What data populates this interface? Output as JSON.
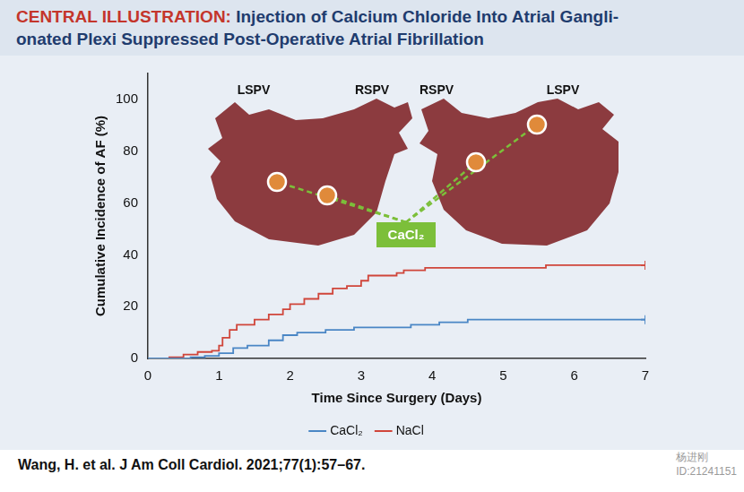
{
  "header": {
    "lead": "CENTRAL ILLUSTRATION:",
    "lines": [
      "Injection of Calcium Chloride Into Atrial Gangli-",
      "onated Plexi Suppressed Post-Operative Atrial Fibrillation"
    ]
  },
  "figure": {
    "left_heart_labels": [
      "LSPV",
      "RSPV"
    ],
    "right_heart_labels": [
      "RSPV",
      "LSPV"
    ],
    "injection_label": "CaCl₂"
  },
  "chart_data": {
    "type": "line",
    "x_label": "Time Since Surgery (Days)",
    "y_label": "Cumulative Incidence of AF (%)",
    "xlim": [
      0,
      7
    ],
    "xticks": [
      0,
      1,
      2,
      3,
      4,
      5,
      6,
      7
    ],
    "ylim": [
      0,
      110
    ],
    "yticks": [
      0,
      20,
      40,
      60,
      80,
      100
    ],
    "grid": false,
    "legend": "bottom",
    "series": [
      {
        "name": "CaCl₂",
        "color": "#4a86c5",
        "line_style": "step",
        "x": [
          0,
          0.6,
          0.8,
          1.0,
          1.2,
          1.4,
          1.7,
          1.9,
          2.1,
          2.5,
          2.9,
          3.7,
          4.1,
          4.5,
          7
        ],
        "values": [
          0,
          0.5,
          1,
          2,
          4,
          5,
          7,
          9,
          10,
          11,
          12,
          13,
          14,
          15,
          15
        ]
      },
      {
        "name": "NaCl",
        "color": "#d0453a",
        "line_style": "step",
        "x": [
          0,
          0.3,
          0.5,
          0.7,
          0.9,
          1.0,
          1.05,
          1.15,
          1.25,
          1.5,
          1.7,
          1.9,
          2.0,
          2.2,
          2.4,
          2.6,
          2.8,
          3.0,
          3.1,
          3.5,
          3.6,
          3.9,
          5.6,
          7
        ],
        "values": [
          0,
          0.5,
          1.5,
          2.5,
          3,
          5,
          8,
          11,
          13,
          15,
          17,
          19,
          21,
          23,
          25,
          27,
          28,
          30,
          32,
          33,
          34,
          35,
          36,
          36
        ]
      }
    ]
  },
  "footer": "Wang, H. et al. J Am Coll Cardiol. 2021;77(1):57–67.",
  "watermark": [
    "杨进刚",
    "ID:21241151"
  ]
}
